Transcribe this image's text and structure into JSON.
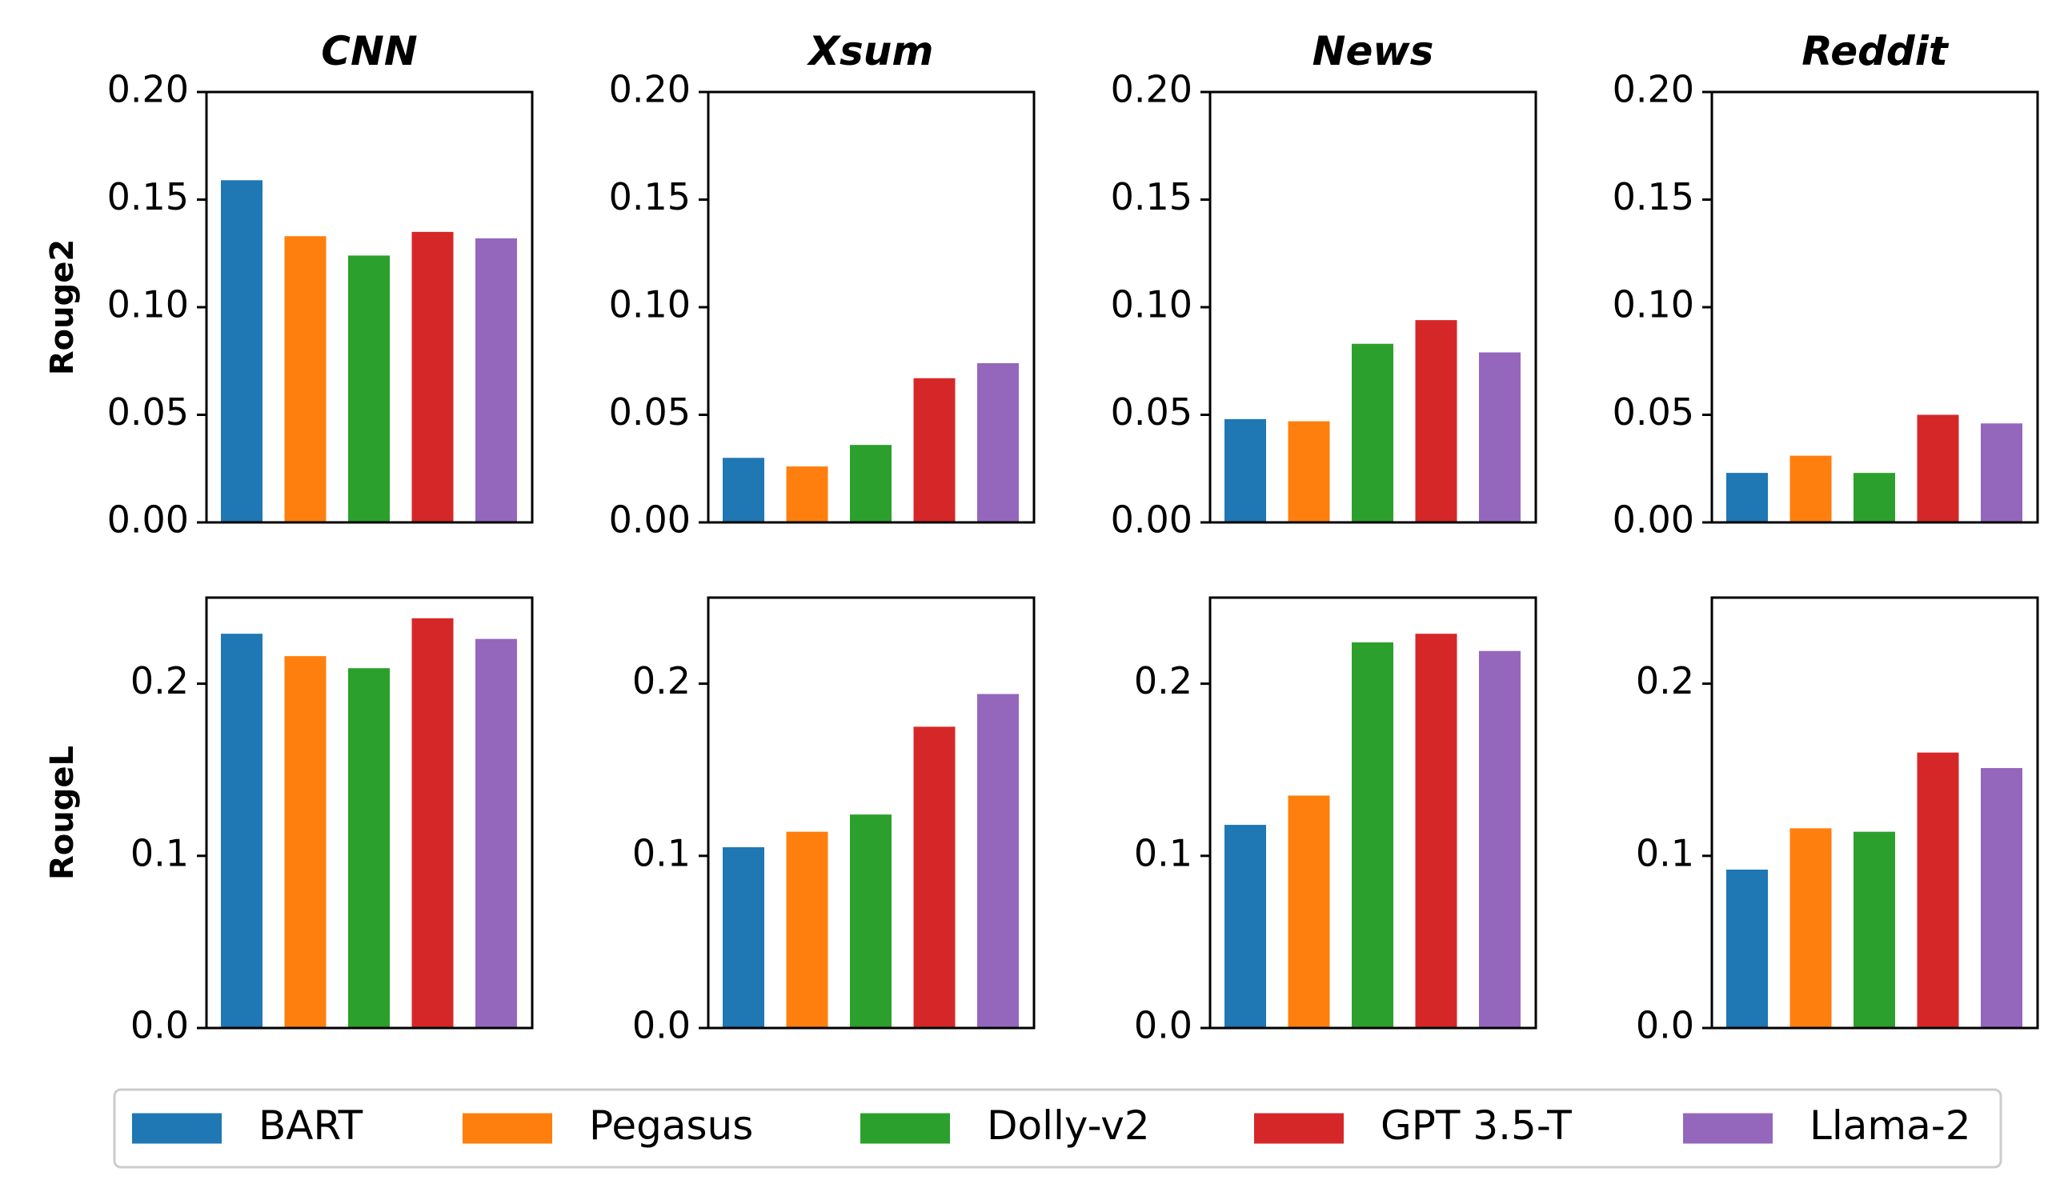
{
  "chart_data": {
    "type": "bar",
    "layout": "2x4 grid",
    "columns": [
      "CNN",
      "Xsum",
      "News",
      "Reddit"
    ],
    "rows": [
      {
        "metric": "Rouge2",
        "ylim": [
          0,
          0.2
        ],
        "yticks": [
          "0.00",
          "0.05",
          "0.10",
          "0.15",
          "0.20"
        ],
        "ytick_values": [
          0,
          0.05,
          0.1,
          0.15,
          0.2
        ]
      },
      {
        "metric": "RougeL",
        "ylim": [
          0,
          0.25
        ],
        "yticks": [
          "0.0",
          "0.1",
          "0.2"
        ],
        "ytick_values": [
          0,
          0.1,
          0.2
        ]
      }
    ],
    "series": [
      {
        "name": "BART",
        "color": "#1f77b4",
        "Rouge2": [
          0.159,
          0.03,
          0.048,
          0.023
        ],
        "RougeL": [
          0.229,
          0.105,
          0.118,
          0.092
        ]
      },
      {
        "name": "Pegasus",
        "color": "#ff7f0e",
        "Rouge2": [
          0.133,
          0.026,
          0.047,
          0.031
        ],
        "RougeL": [
          0.216,
          0.114,
          0.135,
          0.116
        ]
      },
      {
        "name": "Dolly-v2",
        "color": "#2ca02c",
        "Rouge2": [
          0.124,
          0.036,
          0.083,
          0.023
        ],
        "RougeL": [
          0.209,
          0.124,
          0.224,
          0.114
        ]
      },
      {
        "name": "GPT 3.5-T",
        "color": "#d62728",
        "Rouge2": [
          0.135,
          0.067,
          0.094,
          0.05
        ],
        "RougeL": [
          0.238,
          0.175,
          0.229,
          0.16
        ]
      },
      {
        "name": "Llama-2",
        "color": "#9467bd",
        "Rouge2": [
          0.132,
          0.074,
          0.079,
          0.046
        ],
        "RougeL": [
          0.226,
          0.194,
          0.219,
          0.151
        ]
      }
    ],
    "legend": {
      "placement": "bottom",
      "labels": [
        "BART",
        "Pegasus",
        "Dolly-v2",
        "GPT 3.5-T",
        "Llama-2"
      ]
    }
  }
}
